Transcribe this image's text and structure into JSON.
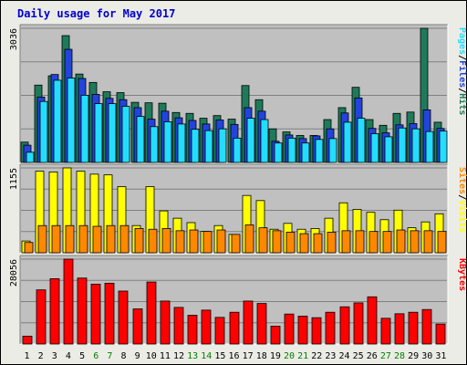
{
  "chart_data": {
    "type": "bar",
    "title": "Daily usage for May 2017",
    "categories": [
      "1",
      "2",
      "3",
      "4",
      "5",
      "6",
      "7",
      "8",
      "9",
      "10",
      "11",
      "12",
      "13",
      "14",
      "15",
      "16",
      "17",
      "18",
      "19",
      "20",
      "21",
      "22",
      "23",
      "24",
      "25",
      "26",
      "27",
      "28",
      "29",
      "30",
      "31"
    ],
    "weekend_days": [
      "6",
      "7",
      "13",
      "14",
      "20",
      "21",
      "27",
      "28"
    ],
    "colors": {
      "title": "#0000cc",
      "background": "#ecece6",
      "plot_background": "#c0c0c0",
      "gridline": "#808080",
      "hits": "#1f7a5a",
      "files": "#2244dd",
      "pages": "#22ddff",
      "visits": "#ffff00",
      "sites": "#ff8800",
      "kbytes": "#ff0000",
      "weekday_label": "#000000",
      "weekend_label": "#008000"
    },
    "panels": [
      {
        "name": "hits-files-pages",
        "ymax_label": "3036",
        "ymax": 3036,
        "legend": [
          "Pages",
          "Files",
          "Hits"
        ],
        "series": [
          {
            "name": "Hits",
            "values": [
              460,
              1750,
              1960,
              2870,
              2000,
              1810,
              1600,
              1580,
              1360,
              1350,
              1340,
              1130,
              1110,
              1000,
              1060,
              980,
              1740,
              1420,
              760,
              690,
              610,
              610,
              970,
              1240,
              1700,
              970,
              840,
              1110,
              1140,
              3036,
              910
            ]
          },
          {
            "name": "Files",
            "values": [
              390,
              1480,
              1990,
              2560,
              1900,
              1540,
              1450,
              1420,
              1240,
              980,
              1160,
              1010,
              950,
              870,
              960,
              860,
              1240,
              1160,
              480,
              620,
              540,
              600,
              760,
              1120,
              1460,
              770,
              670,
              850,
              880,
              1190,
              770
            ]
          },
          {
            "name": "Pages",
            "values": [
              230,
              1380,
              1860,
              1910,
              1520,
              1330,
              1330,
              1270,
              1040,
              810,
              920,
              870,
              750,
              720,
              760,
              550,
              1000,
              970,
              440,
              550,
              440,
              520,
              540,
              910,
              1000,
              650,
              580,
              780,
              760,
              700,
              710
            ]
          }
        ]
      },
      {
        "name": "visits-sites",
        "ymax_label": "1155",
        "ymax": 1155,
        "legend": [
          "Sites",
          "Visits"
        ],
        "series": [
          {
            "name": "Visits",
            "values": [
              160,
              1110,
              1100,
              1155,
              1110,
              1070,
              1060,
              900,
              370,
              900,
              570,
              470,
              410,
              290,
              370,
              250,
              780,
              710,
              320,
              400,
              320,
              330,
              470,
              680,
              590,
              550,
              450,
              580,
              340,
              420,
              530
            ]
          },
          {
            "name": "Sites",
            "values": [
              140,
              370,
              370,
              370,
              370,
              360,
              370,
              370,
              330,
              320,
              330,
              300,
              310,
              290,
              310,
              250,
              380,
              340,
              300,
              280,
              260,
              260,
              280,
              300,
              300,
              290,
              290,
              310,
              300,
              300,
              290
            ]
          }
        ]
      },
      {
        "name": "kbytes",
        "ymax_label": "28056",
        "ymax": 28056,
        "legend": [
          "KBytes"
        ],
        "series": [
          {
            "name": "KBytes",
            "values": [
              2600,
              17900,
              21600,
              28056,
              21800,
              19800,
              20100,
              17500,
              11600,
              20500,
              14200,
              12100,
              9500,
              11200,
              8800,
              10500,
              14200,
              13400,
              5900,
              9900,
              9200,
              8700,
              10500,
              12300,
              13600,
              15600,
              8500,
              10000,
              10500,
              11400,
              6600
            ]
          }
        ]
      }
    ]
  }
}
